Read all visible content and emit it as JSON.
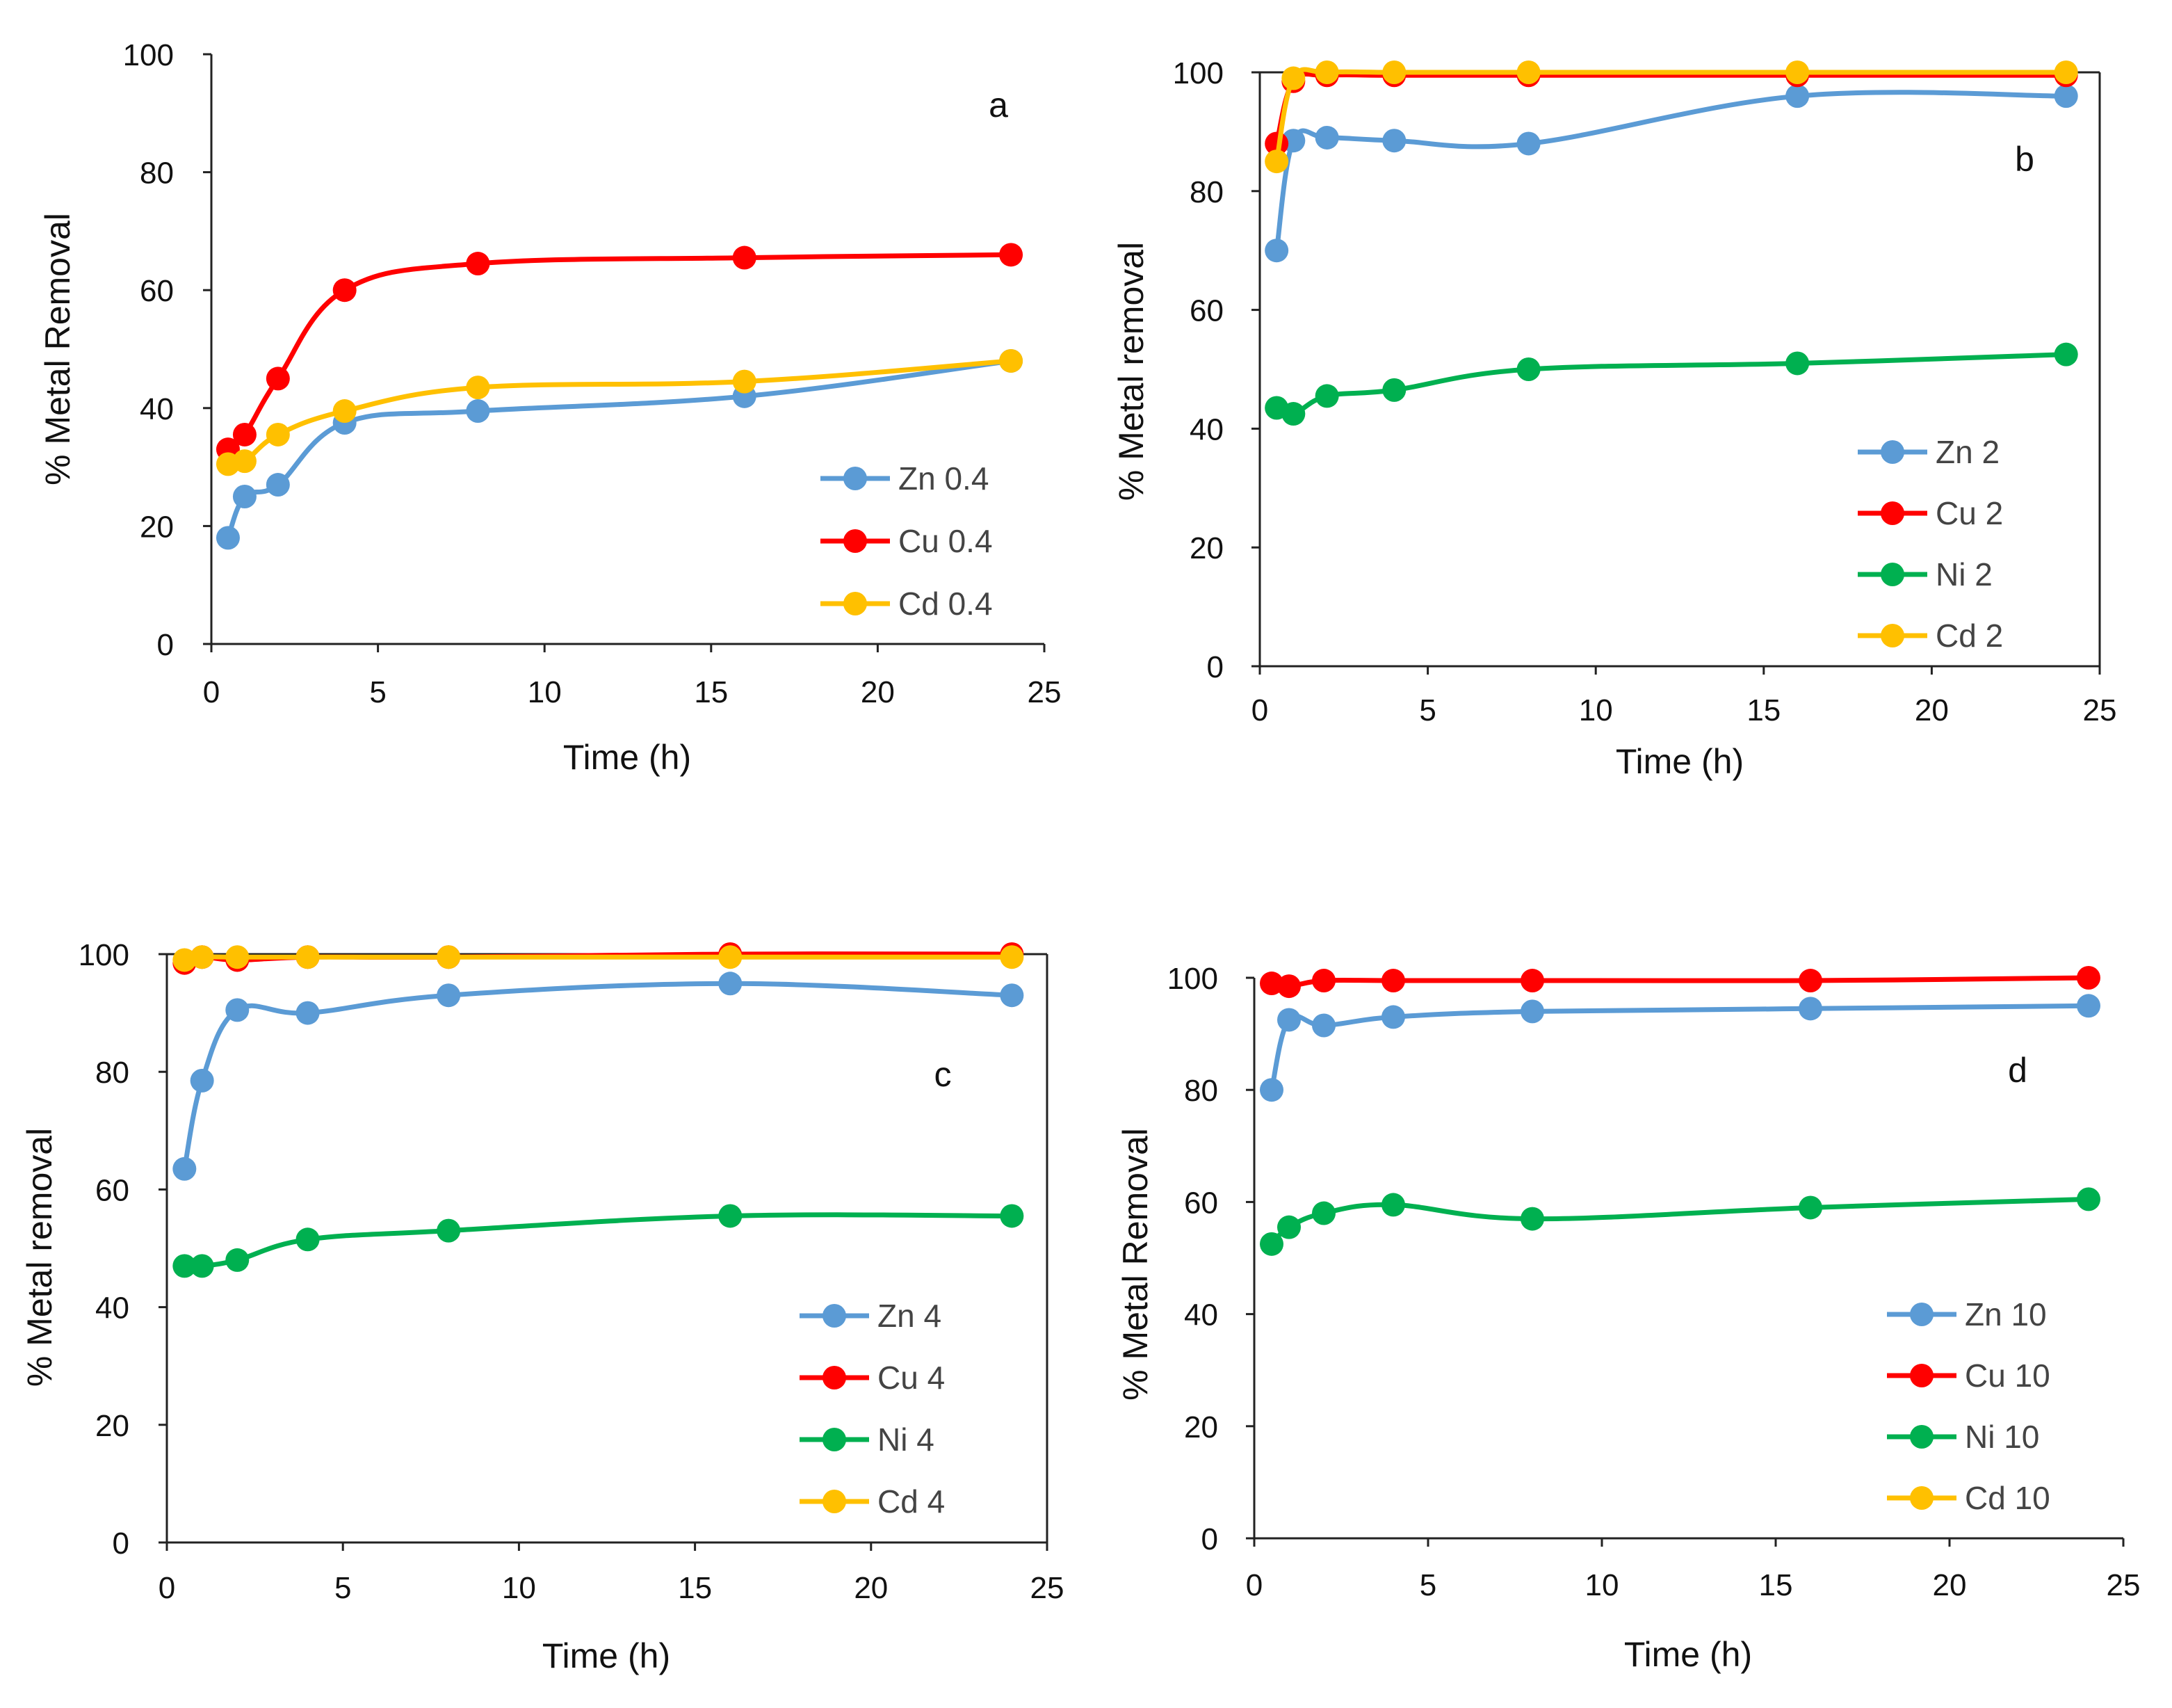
{
  "chart_data": [
    {
      "type": "line",
      "panel": "a",
      "xlabel": "Time (h)",
      "ylabel": "% Metal Removal",
      "xlim": [
        0,
        25
      ],
      "ylim": [
        0,
        100
      ],
      "xticks": [
        0,
        5,
        10,
        15,
        20,
        25
      ],
      "yticks": [
        0,
        20,
        40,
        60,
        80,
        100
      ],
      "grid": false,
      "legend_position": "bottom-right",
      "series": [
        {
          "name": "Zn 0.4",
          "color": "#5b9bd5",
          "x": [
            0.5,
            1,
            2,
            4,
            8,
            16,
            24
          ],
          "y": [
            18,
            25,
            27,
            37.5,
            39.5,
            42,
            48
          ]
        },
        {
          "name": "Cu 0.4",
          "color": "#ff0000",
          "x": [
            0.5,
            1,
            2,
            4,
            8,
            16,
            24
          ],
          "y": [
            33,
            35.5,
            45,
            60,
            64.5,
            65.5,
            66
          ]
        },
        {
          "name": "Cd 0.4",
          "color": "#ffc000",
          "x": [
            0.5,
            1,
            2,
            4,
            8,
            16,
            24
          ],
          "y": [
            30.5,
            31,
            35.5,
            39.5,
            43.5,
            44.5,
            48
          ]
        }
      ]
    },
    {
      "type": "line",
      "panel": "b",
      "xlabel": "Time (h)",
      "ylabel": "% Metal removal",
      "xlim": [
        0,
        25
      ],
      "ylim": [
        0,
        100
      ],
      "xticks": [
        0,
        5,
        10,
        15,
        20,
        25
      ],
      "yticks": [
        0,
        20,
        40,
        60,
        80,
        100
      ],
      "grid": false,
      "legend_position": "bottom-right",
      "series": [
        {
          "name": "Zn 2",
          "color": "#5b9bd5",
          "x": [
            0.5,
            1,
            2,
            4,
            8,
            16,
            24
          ],
          "y": [
            70,
            88.5,
            89,
            88.5,
            88,
            96,
            96
          ]
        },
        {
          "name": "Cu 2",
          "color": "#ff0000",
          "x": [
            0.5,
            1,
            2,
            4,
            8,
            16,
            24
          ],
          "y": [
            88,
            98.5,
            99.5,
            99.5,
            99.5,
            99.5,
            99.5
          ]
        },
        {
          "name": "Ni 2",
          "color": "#00b050",
          "x": [
            0.5,
            1,
            2,
            4,
            8,
            16,
            24
          ],
          "y": [
            43.5,
            42.5,
            45.5,
            46.5,
            50,
            51,
            52.5
          ]
        },
        {
          "name": "Cd 2",
          "color": "#ffc000",
          "x": [
            0.5,
            1,
            2,
            4,
            8,
            16,
            24
          ],
          "y": [
            85,
            99,
            100,
            100,
            100,
            100,
            100
          ]
        }
      ]
    },
    {
      "type": "line",
      "panel": "c",
      "xlabel": "Time (h)",
      "ylabel": "% Metal removal",
      "xlim": [
        0,
        25
      ],
      "ylim": [
        0,
        100
      ],
      "xticks": [
        0,
        5,
        10,
        15,
        20,
        25
      ],
      "yticks": [
        0,
        20,
        40,
        60,
        80,
        100
      ],
      "grid": false,
      "legend_position": "bottom-right",
      "series": [
        {
          "name": "Zn 4",
          "color": "#5b9bd5",
          "x": [
            0.5,
            1,
            2,
            4,
            8,
            16,
            24
          ],
          "y": [
            63.5,
            78.5,
            90.5,
            90,
            93,
            95,
            93
          ]
        },
        {
          "name": "Cu 4",
          "color": "#ff0000",
          "x": [
            0.5,
            1,
            2,
            4,
            8,
            16,
            24
          ],
          "y": [
            98.5,
            99.5,
            99,
            99.5,
            99.5,
            100,
            100
          ]
        },
        {
          "name": "Ni 4",
          "color": "#00b050",
          "x": [
            0.5,
            1,
            2,
            4,
            8,
            16,
            24
          ],
          "y": [
            47,
            47,
            48,
            51.5,
            53,
            55.5,
            55.5
          ]
        },
        {
          "name": "Cd 4",
          "color": "#ffc000",
          "x": [
            0.5,
            1,
            2,
            4,
            8,
            16,
            24
          ],
          "y": [
            99,
            99.5,
            99.5,
            99.5,
            99.5,
            99.5,
            99.5
          ]
        }
      ]
    },
    {
      "type": "line",
      "panel": "d",
      "xlabel": "Time (h)",
      "ylabel": "% Metal Removal",
      "xlim": [
        0,
        25
      ],
      "ylim": [
        0,
        100
      ],
      "xticks": [
        0,
        5,
        10,
        15,
        20,
        25
      ],
      "yticks": [
        0,
        20,
        40,
        60,
        80,
        100
      ],
      "grid": false,
      "legend_position": "bottom-right",
      "series": [
        {
          "name": "Zn 10",
          "color": "#5b9bd5",
          "x": [
            0.5,
            1,
            2,
            4,
            8,
            16,
            24
          ],
          "y": [
            80,
            92.5,
            91.5,
            93,
            94,
            94.5,
            95
          ]
        },
        {
          "name": "Cu 10",
          "color": "#ff0000",
          "x": [
            0.5,
            1,
            2,
            4,
            8,
            16,
            24
          ],
          "y": [
            99,
            98.5,
            99.5,
            99.5,
            99.5,
            99.5,
            100
          ]
        },
        {
          "name": "Ni 10",
          "color": "#00b050",
          "x": [
            0.5,
            1,
            2,
            4,
            8,
            16,
            24
          ],
          "y": [
            52.5,
            55.5,
            58,
            59.5,
            57,
            59,
            60.5
          ]
        },
        {
          "name": "Cd 10",
          "color": "#ffc000",
          "x": [
            0.5,
            1,
            2,
            4,
            8,
            16,
            24
          ],
          "y": [
            null,
            null,
            null,
            null,
            null,
            null,
            null
          ]
        }
      ]
    }
  ]
}
